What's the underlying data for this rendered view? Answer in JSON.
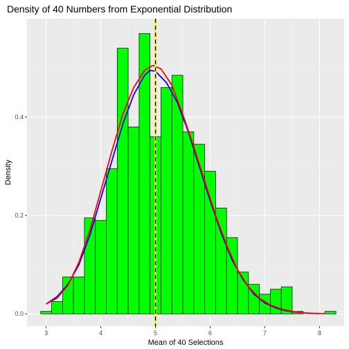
{
  "chart_data": {
    "type": "histogram",
    "title": "Density of 40 Numbers from Exponential Distribution",
    "xlabel": "Mean of 40 Selections",
    "ylabel": "Density",
    "xlim": [
      2.65,
      8.45
    ],
    "ylim": [
      -0.025,
      0.6
    ],
    "x_ticks": [
      3,
      4,
      5,
      6,
      7,
      8
    ],
    "y_ticks": [
      0.0,
      0.2,
      0.4
    ],
    "y_tick_labels": [
      "0.0",
      "0.2",
      "0.4"
    ],
    "grid": true,
    "bin_width": 0.2,
    "bins": [
      {
        "x0": 2.9,
        "x1": 3.1,
        "density": 0.005
      },
      {
        "x0": 3.1,
        "x1": 3.3,
        "density": 0.025
      },
      {
        "x0": 3.3,
        "x1": 3.5,
        "density": 0.075
      },
      {
        "x0": 3.5,
        "x1": 3.7,
        "density": 0.075
      },
      {
        "x0": 3.7,
        "x1": 3.9,
        "density": 0.195
      },
      {
        "x0": 3.9,
        "x1": 4.1,
        "density": 0.19
      },
      {
        "x0": 4.1,
        "x1": 4.3,
        "density": 0.295
      },
      {
        "x0": 4.3,
        "x1": 4.5,
        "density": 0.54
      },
      {
        "x0": 4.5,
        "x1": 4.7,
        "density": 0.38
      },
      {
        "x0": 4.7,
        "x1": 4.9,
        "density": 0.57
      },
      {
        "x0": 4.9,
        "x1": 5.1,
        "density": 0.36
      },
      {
        "x0": 5.1,
        "x1": 5.3,
        "density": 0.46
      },
      {
        "x0": 5.3,
        "x1": 5.5,
        "density": 0.485
      },
      {
        "x0": 5.5,
        "x1": 5.7,
        "density": 0.37
      },
      {
        "x0": 5.7,
        "x1": 5.9,
        "density": 0.345
      },
      {
        "x0": 5.9,
        "x1": 6.1,
        "density": 0.29
      },
      {
        "x0": 6.1,
        "x1": 6.3,
        "density": 0.215
      },
      {
        "x0": 6.3,
        "x1": 6.5,
        "density": 0.155
      },
      {
        "x0": 6.5,
        "x1": 6.7,
        "density": 0.085
      },
      {
        "x0": 6.7,
        "x1": 6.9,
        "density": 0.06
      },
      {
        "x0": 6.9,
        "x1": 7.1,
        "density": 0.04
      },
      {
        "x0": 7.1,
        "x1": 7.3,
        "density": 0.05
      },
      {
        "x0": 7.3,
        "x1": 7.5,
        "density": 0.055
      },
      {
        "x0": 7.5,
        "x1": 7.7,
        "density": 0.005
      },
      {
        "x0": 8.1,
        "x1": 8.3,
        "density": 0.005
      }
    ],
    "curves": [
      {
        "color": "#0000ff",
        "points": [
          [
            3.0,
            0.02
          ],
          [
            3.2,
            0.035
          ],
          [
            3.4,
            0.06
          ],
          [
            3.6,
            0.1
          ],
          [
            3.8,
            0.16
          ],
          [
            4.0,
            0.235
          ],
          [
            4.2,
            0.31
          ],
          [
            4.4,
            0.385
          ],
          [
            4.6,
            0.445
          ],
          [
            4.8,
            0.485
          ],
          [
            4.9,
            0.495
          ],
          [
            5.0,
            0.493
          ],
          [
            5.2,
            0.47
          ],
          [
            5.4,
            0.43
          ],
          [
            5.6,
            0.37
          ],
          [
            5.8,
            0.3
          ],
          [
            6.0,
            0.23
          ],
          [
            6.2,
            0.165
          ],
          [
            6.4,
            0.11
          ],
          [
            6.6,
            0.07
          ],
          [
            6.8,
            0.04
          ],
          [
            7.0,
            0.022
          ],
          [
            7.2,
            0.012
          ],
          [
            7.4,
            0.006
          ],
          [
            7.6,
            0.003
          ],
          [
            7.8,
            0.001
          ],
          [
            8.0,
            0.0005
          ]
        ]
      },
      {
        "color": "#ff0000",
        "points": [
          [
            3.0,
            0.02
          ],
          [
            3.2,
            0.032
          ],
          [
            3.4,
            0.058
          ],
          [
            3.6,
            0.105
          ],
          [
            3.8,
            0.17
          ],
          [
            4.0,
            0.25
          ],
          [
            4.2,
            0.33
          ],
          [
            4.4,
            0.405
          ],
          [
            4.6,
            0.46
          ],
          [
            4.8,
            0.495
          ],
          [
            4.95,
            0.505
          ],
          [
            5.1,
            0.498
          ],
          [
            5.3,
            0.465
          ],
          [
            5.5,
            0.405
          ],
          [
            5.7,
            0.34
          ],
          [
            5.9,
            0.27
          ],
          [
            6.1,
            0.2
          ],
          [
            6.3,
            0.14
          ],
          [
            6.5,
            0.09
          ],
          [
            6.7,
            0.055
          ],
          [
            6.9,
            0.032
          ],
          [
            7.1,
            0.018
          ],
          [
            7.3,
            0.01
          ],
          [
            7.5,
            0.005
          ],
          [
            7.7,
            0.002
          ],
          [
            7.9,
            0.001
          ],
          [
            8.1,
            0.0005
          ]
        ]
      }
    ],
    "vlines": [
      {
        "x": 5.0,
        "color": "#ffff00",
        "style": "solid"
      },
      {
        "x": 5.0,
        "color": "#000000",
        "style": "dashed"
      }
    ]
  }
}
